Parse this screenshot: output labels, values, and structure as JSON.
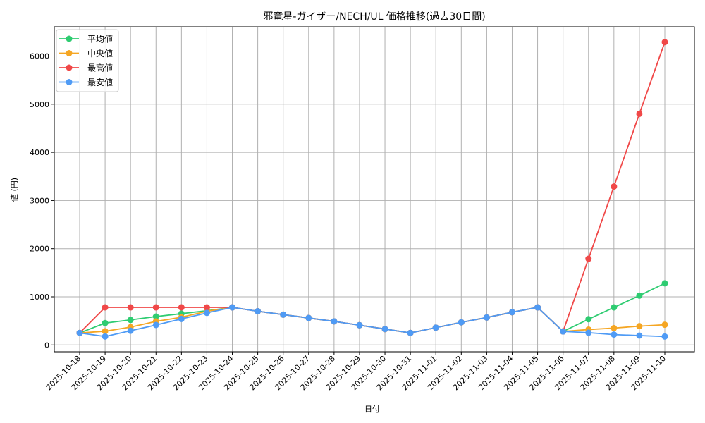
{
  "chart_data": {
    "type": "line",
    "title": "邪竜星-ガイザー/NECH/UL 価格推移(過去30日間)",
    "xlabel": "日付",
    "ylabel": "値 (円)",
    "ylim": [
      -150,
      6600
    ],
    "yticks": [
      0,
      1000,
      2000,
      3000,
      4000,
      5000,
      6000
    ],
    "grid": true,
    "legend_position": "upper left",
    "categories": [
      "2025-10-18",
      "2025-10-19",
      "2025-10-20",
      "2025-10-21",
      "2025-10-22",
      "2025-10-23",
      "2025-10-24",
      "2025-10-25",
      "2025-10-26",
      "2025-10-27",
      "2025-10-28",
      "2025-10-29",
      "2025-10-30",
      "2025-10-31",
      "2025-11-01",
      "2025-11-02",
      "2025-11-03",
      "2025-11-04",
      "2025-11-05",
      "2025-11-06",
      "2025-11-07",
      "2025-11-08",
      "2025-11-09",
      "2025-11-10"
    ],
    "series": [
      {
        "name": "平均値",
        "color": "#2ecc71",
        "values": [
          250,
          455,
          520,
          590,
          650,
          710,
          780,
          700,
          630,
          560,
          490,
          410,
          330,
          250,
          360,
          470,
          570,
          680,
          780,
          280,
          535,
          780,
          1025,
          1280
        ]
      },
      {
        "name": "中央値",
        "color": "#f5a623",
        "values": [
          250,
          285,
          370,
          490,
          575,
          700,
          780,
          700,
          630,
          560,
          490,
          410,
          330,
          250,
          360,
          470,
          570,
          680,
          780,
          280,
          320,
          350,
          390,
          420
        ]
      },
      {
        "name": "最高値",
        "color": "#f04848",
        "values": [
          250,
          780,
          780,
          780,
          780,
          780,
          780,
          700,
          630,
          560,
          490,
          410,
          330,
          250,
          360,
          470,
          570,
          680,
          780,
          280,
          1790,
          3290,
          4800,
          6290
        ]
      },
      {
        "name": "最安値",
        "color": "#4f9bf5",
        "values": [
          250,
          175,
          295,
          415,
          540,
          665,
          780,
          700,
          630,
          560,
          490,
          410,
          330,
          250,
          360,
          470,
          570,
          680,
          780,
          280,
          255,
          215,
          195,
          175
        ]
      }
    ]
  }
}
